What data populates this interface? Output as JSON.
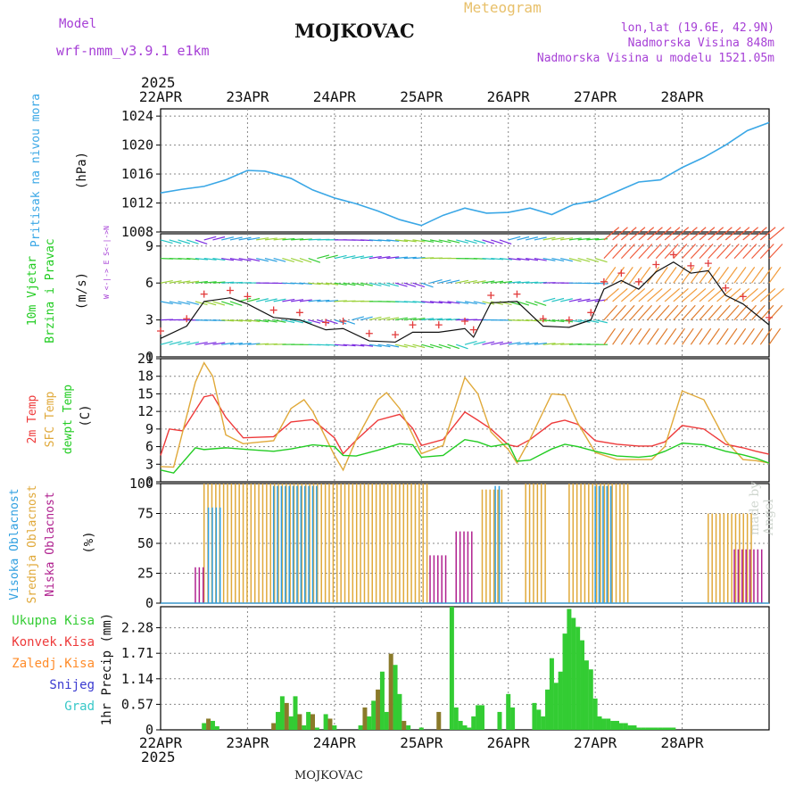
{
  "header": {
    "model_label": "Model",
    "model_name": "wrf-nmm_v3.9.1 e1km",
    "station": "MOJKOVAC",
    "meteogram": "Meteogram",
    "lonlat": "lon,lat (19.6E, 42.9N)",
    "elevation": "Nadmorska Visina 848m",
    "model_elevation": "Nadmorska Visina u modelu 1521.05m"
  },
  "footer": {
    "station": "MOJKOVAC",
    "watermark": "made by Angel"
  },
  "time_axis": {
    "year": "2025",
    "labels": [
      "22APR",
      "23APR",
      "24APR",
      "25APR",
      "26APR",
      "27APR",
      "28APR"
    ]
  },
  "colors": {
    "pressure": "#3aa7e6",
    "temp2m": "#ee3a3a",
    "sfc": "#e0a93a",
    "dewpt": "#22cc22",
    "high_cloud": "#2f9fe0",
    "mid_cloud": "#e0a93a",
    "low_cloud": "#b0208f",
    "precip_total": "#33cc33",
    "precip_conv": "#ee3a3a",
    "precip_strat": "#ff8c2a",
    "snow": "#3a3ad0",
    "graupel": "#38c8c8",
    "label_purple": "#a63fd6"
  },
  "chart_data": [
    {
      "type": "line",
      "panel": "pressure",
      "ylabel": [
        "Pritisak na nivou mora",
        "(hPa)"
      ],
      "yticks": [
        1008,
        1012,
        1016,
        1020,
        1024
      ],
      "ylim": [
        1008,
        1025
      ],
      "grid": true,
      "series": [
        {
          "x": [
            0,
            0.25,
            0.5,
            0.75,
            1,
            1.2,
            1.5,
            1.75,
            2,
            2.25,
            2.5,
            2.75,
            3,
            3.25,
            3.5,
            3.75,
            4,
            4.25,
            4.5,
            4.75,
            5,
            5.25,
            5.5,
            5.75,
            6,
            6.25,
            6.5,
            6.75,
            7
          ],
          "values": [
            1013.4,
            1013.9,
            1014.3,
            1015.2,
            1016.5,
            1016.4,
            1015.4,
            1013.8,
            1012.7,
            1011.9,
            1010.9,
            1009.7,
            1008.9,
            1010.3,
            1011.3,
            1010.6,
            1010.7,
            1011.3,
            1010.4,
            1011.8,
            1012.3,
            1013.6,
            1014.9,
            1015.2,
            1016.9,
            1018.3,
            1020.0,
            1022.0,
            1023.1
          ]
        }
      ]
    },
    {
      "type": "scatter",
      "panel": "wind",
      "ylabel": [
        "10m Vjetar",
        "Brzina i Pravac",
        "(m/s)"
      ],
      "compass": "W <-|-> E  S<-|->N",
      "yticks": [
        0,
        3,
        6,
        9
      ],
      "ylim": [
        0,
        10
      ],
      "grid": true,
      "series": [
        {
          "name": "speed",
          "x": [
            0,
            0.3,
            0.5,
            0.8,
            1.0,
            1.3,
            1.6,
            1.9,
            2.1,
            2.4,
            2.7,
            2.9,
            3.2,
            3.5,
            3.6,
            3.8,
            4.1,
            4.4,
            4.7,
            4.95,
            5.1,
            5.3,
            5.5,
            5.7,
            5.9,
            6.1,
            6.3,
            6.5,
            6.7,
            7.0
          ],
          "values": [
            1.5,
            2.5,
            4.5,
            4.8,
            4.3,
            3.2,
            3.0,
            2.2,
            2.3,
            1.3,
            1.2,
            2.0,
            2.0,
            2.3,
            1.6,
            4.4,
            4.5,
            2.5,
            2.4,
            3.0,
            5.5,
            6.2,
            5.5,
            6.9,
            7.7,
            6.8,
            7.0,
            5.0,
            4.3,
            2.6
          ]
        }
      ]
    },
    {
      "type": "line",
      "panel": "temperature",
      "ylabel": [
        "2m Temp",
        "SFC Temp",
        "dewpt Temp",
        "(C)"
      ],
      "yticks": [
        0,
        3,
        6,
        9,
        12,
        15,
        18,
        21
      ],
      "ylim": [
        0,
        21
      ],
      "grid": true,
      "series": [
        {
          "name": "2m Temp",
          "x": [
            0,
            0.1,
            0.25,
            0.5,
            0.6,
            0.75,
            0.95,
            1.3,
            1.5,
            1.75,
            2.0,
            2.1,
            2.25,
            2.5,
            2.75,
            2.9,
            3.0,
            3.25,
            3.5,
            3.65,
            3.8,
            4.0,
            4.1,
            4.25,
            4.5,
            4.65,
            4.8,
            5.0,
            5.25,
            5.5,
            5.65,
            5.8,
            6.0,
            6.25,
            6.5,
            6.7,
            6.85,
            7.0
          ],
          "values": [
            4.5,
            9.0,
            8.7,
            14.5,
            14.8,
            11.0,
            7.5,
            7.7,
            10.2,
            10.6,
            7.5,
            4.8,
            7.1,
            10.5,
            11.5,
            9.1,
            6.2,
            7.2,
            11.9,
            10.5,
            9.0,
            6.3,
            6.0,
            7.2,
            10.0,
            10.5,
            9.8,
            7.0,
            6.4,
            6.1,
            6.1,
            6.8,
            9.6,
            9.0,
            6.4,
            5.8,
            5.2,
            4.7
          ]
        },
        {
          "name": "SFC Temp",
          "x": [
            0,
            0.15,
            0.4,
            0.5,
            0.6,
            0.75,
            0.95,
            1.3,
            1.5,
            1.65,
            1.75,
            2.0,
            2.1,
            2.25,
            2.5,
            2.6,
            2.75,
            2.9,
            3.0,
            3.25,
            3.5,
            3.65,
            3.8,
            4.0,
            4.1,
            4.25,
            4.5,
            4.65,
            4.8,
            5.0,
            5.25,
            5.5,
            5.65,
            5.8,
            6.0,
            6.25,
            6.5,
            6.7,
            6.85,
            7.0
          ],
          "values": [
            2.6,
            2.5,
            17.0,
            20.3,
            18.0,
            8.0,
            6.5,
            7.0,
            12.5,
            14.0,
            12.0,
            4.5,
            2.0,
            7.2,
            14.0,
            15.2,
            12.5,
            8.0,
            4.8,
            6.2,
            17.8,
            15.0,
            8.5,
            5.5,
            3.2,
            7.3,
            15.0,
            14.8,
            10.0,
            5.0,
            3.8,
            3.8,
            3.8,
            6.0,
            15.5,
            14.0,
            7.0,
            3.8,
            3.6,
            3.2
          ]
        },
        {
          "name": "dewpt Temp",
          "x": [
            0,
            0.15,
            0.4,
            0.5,
            0.75,
            1.0,
            1.3,
            1.5,
            1.75,
            2.0,
            2.1,
            2.25,
            2.5,
            2.75,
            2.9,
            3.0,
            3.25,
            3.5,
            3.65,
            3.8,
            4.0,
            4.1,
            4.25,
            4.5,
            4.65,
            4.8,
            5.0,
            5.25,
            5.5,
            5.65,
            5.8,
            6.0,
            6.25,
            6.5,
            6.7,
            6.85,
            7.0
          ],
          "values": [
            2.0,
            1.5,
            5.8,
            5.5,
            5.8,
            5.5,
            5.2,
            5.6,
            6.3,
            6.0,
            4.5,
            4.4,
            5.4,
            6.5,
            6.3,
            4.2,
            4.5,
            7.2,
            6.8,
            6.0,
            6.5,
            3.5,
            3.7,
            5.6,
            6.4,
            6.0,
            5.2,
            4.4,
            4.2,
            4.4,
            5.2,
            6.6,
            6.3,
            5.2,
            4.6,
            4.0,
            3.2
          ]
        }
      ]
    },
    {
      "type": "bar",
      "panel": "cloud",
      "ylabel": [
        "Visoka Oblacnost",
        "Srednja Oblacnost",
        "Niska Oblacnost",
        "(%)"
      ],
      "yticks": [
        0,
        25,
        50,
        75,
        100
      ],
      "ylim": [
        0,
        100
      ],
      "grid": true,
      "series": [
        {
          "name": "Srednja Oblacnost",
          "values": [
            {
              "x0": 0.5,
              "x1": 3.1,
              "v": 100
            },
            {
              "x0": 3.7,
              "x1": 3.95,
              "v": 95
            },
            {
              "x0": 4.2,
              "x1": 4.45,
              "v": 100
            },
            {
              "x0": 4.7,
              "x1": 5.4,
              "v": 100
            },
            {
              "x0": 6.3,
              "x1": 6.8,
              "v": 75
            }
          ]
        },
        {
          "name": "Visoka Oblacnost",
          "values": [
            {
              "x0": 0.55,
              "x1": 0.7,
              "v": 80
            },
            {
              "x0": 1.3,
              "x1": 1.8,
              "v": 98
            },
            {
              "x0": 3.85,
              "x1": 3.9,
              "v": 98
            },
            {
              "x0": 5.0,
              "x1": 5.2,
              "v": 98
            }
          ]
        },
        {
          "name": "Niska Oblacnost",
          "values": [
            {
              "x0": 0.4,
              "x1": 0.5,
              "v": 30
            },
            {
              "x0": 3.1,
              "x1": 3.3,
              "v": 40
            },
            {
              "x0": 3.4,
              "x1": 3.6,
              "v": 60
            },
            {
              "x0": 6.6,
              "x1": 6.95,
              "v": 45
            }
          ]
        }
      ]
    },
    {
      "type": "bar",
      "panel": "precip",
      "ylabel": [
        "1hr Precip (mm)"
      ],
      "legend": [
        "Ukupna Kisa",
        "Konvek.Kisa",
        "Zaledj.Kisa",
        "Snijeg",
        "Grad"
      ],
      "yticks": [
        0,
        0.57,
        1.14,
        1.71,
        2.28
      ],
      "ylim": [
        0,
        2.75
      ],
      "grid": true,
      "series": [
        {
          "name": "Ukupna Kisa",
          "x": [
            0.5,
            0.55,
            0.6,
            0.65,
            1.3,
            1.35,
            1.4,
            1.45,
            1.5,
            1.55,
            1.6,
            1.65,
            1.7,
            1.75,
            1.8,
            1.9,
            1.95,
            2.0,
            2.3,
            2.35,
            2.4,
            2.45,
            2.5,
            2.55,
            2.6,
            2.65,
            2.7,
            2.75,
            2.8,
            2.85,
            3.0,
            3.2,
            3.35,
            3.4,
            3.45,
            3.5,
            3.55,
            3.6,
            3.65,
            3.7,
            3.9,
            4.0,
            4.05,
            4.3,
            4.35,
            4.4,
            4.45,
            4.5,
            4.55,
            4.6,
            4.65,
            4.7,
            4.75,
            4.8,
            4.85,
            4.9,
            4.95,
            5.0,
            5.05,
            5.1,
            5.15,
            5.2,
            5.25,
            5.3,
            5.35,
            5.4,
            5.45,
            5.5,
            5.55,
            5.6,
            5.65,
            5.7,
            5.75,
            5.8,
            5.85,
            5.9
          ],
          "values": [
            0.15,
            0.25,
            0.2,
            0.08,
            0.15,
            0.4,
            0.75,
            0.6,
            0.3,
            0.75,
            0.35,
            0.1,
            0.4,
            0.35,
            0.05,
            0.35,
            0.25,
            0.1,
            0.1,
            0.5,
            0.3,
            0.65,
            0.9,
            1.3,
            0.4,
            1.7,
            1.45,
            0.8,
            0.2,
            0.1,
            0.05,
            0.4,
            2.75,
            0.5,
            0.2,
            0.1,
            0.05,
            0.3,
            0.55,
            0.55,
            0.4,
            0.8,
            0.5,
            0.6,
            0.45,
            0.3,
            0.9,
            1.6,
            1.05,
            1.3,
            2.15,
            2.7,
            2.5,
            2.3,
            2.0,
            1.55,
            1.35,
            0.7,
            0.3,
            0.25,
            0.25,
            0.2,
            0.2,
            0.15,
            0.15,
            0.1,
            0.1,
            0.05,
            0.05,
            0.05,
            0.05,
            0.05,
            0.05,
            0.05,
            0.05,
            0.05
          ]
        }
      ]
    }
  ]
}
